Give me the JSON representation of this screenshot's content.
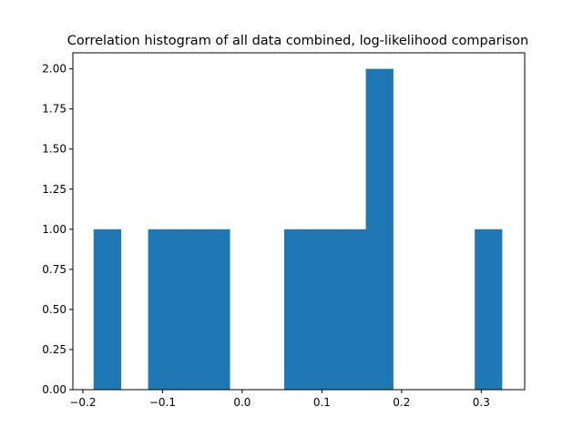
{
  "chart_data": {
    "type": "bar",
    "title": "Correlation histogram of all data combined, log-likelihood comparison",
    "xlabel": "",
    "ylabel": "",
    "xlim": [
      -0.2125,
      0.3545
    ],
    "ylim": [
      0,
      2.1
    ],
    "xticks": [
      {
        "value": -0.2,
        "label": "−0.2"
      },
      {
        "value": -0.1,
        "label": "−0.1"
      },
      {
        "value": 0.0,
        "label": "0.0"
      },
      {
        "value": 0.1,
        "label": "0.1"
      },
      {
        "value": 0.2,
        "label": "0.2"
      },
      {
        "value": 0.3,
        "label": "0.3"
      }
    ],
    "yticks": [
      {
        "value": 0.0,
        "label": "0.00"
      },
      {
        "value": 0.25,
        "label": "0.25"
      },
      {
        "value": 0.5,
        "label": "0.50"
      },
      {
        "value": 0.75,
        "label": "0.75"
      },
      {
        "value": 1.0,
        "label": "1.00"
      },
      {
        "value": 1.25,
        "label": "1.25"
      },
      {
        "value": 1.5,
        "label": "1.50"
      },
      {
        "value": 1.75,
        "label": "1.75"
      },
      {
        "value": 2.0,
        "label": "2.00"
      }
    ],
    "bins": [
      {
        "start": -0.1865,
        "end": -0.1523,
        "count": 1
      },
      {
        "start": -0.1523,
        "end": -0.1181,
        "count": 0
      },
      {
        "start": -0.1181,
        "end": -0.084,
        "count": 1
      },
      {
        "start": -0.084,
        "end": -0.0498,
        "count": 1
      },
      {
        "start": -0.0498,
        "end": -0.0157,
        "count": 1
      },
      {
        "start": -0.0157,
        "end": 0.0185,
        "count": 0
      },
      {
        "start": 0.0185,
        "end": 0.0527,
        "count": 0
      },
      {
        "start": 0.0527,
        "end": 0.0868,
        "count": 1
      },
      {
        "start": 0.0868,
        "end": 0.121,
        "count": 1
      },
      {
        "start": 0.121,
        "end": 0.1551,
        "count": 1
      },
      {
        "start": 0.1551,
        "end": 0.1893,
        "count": 2
      },
      {
        "start": 0.1893,
        "end": 0.2235,
        "count": 0
      },
      {
        "start": 0.2235,
        "end": 0.2576,
        "count": 0
      },
      {
        "start": 0.2576,
        "end": 0.2918,
        "count": 0
      },
      {
        "start": 0.2918,
        "end": 0.3259,
        "count": 1
      }
    ],
    "bar_color": "#1f77b4",
    "grid": false,
    "legend": "none"
  }
}
